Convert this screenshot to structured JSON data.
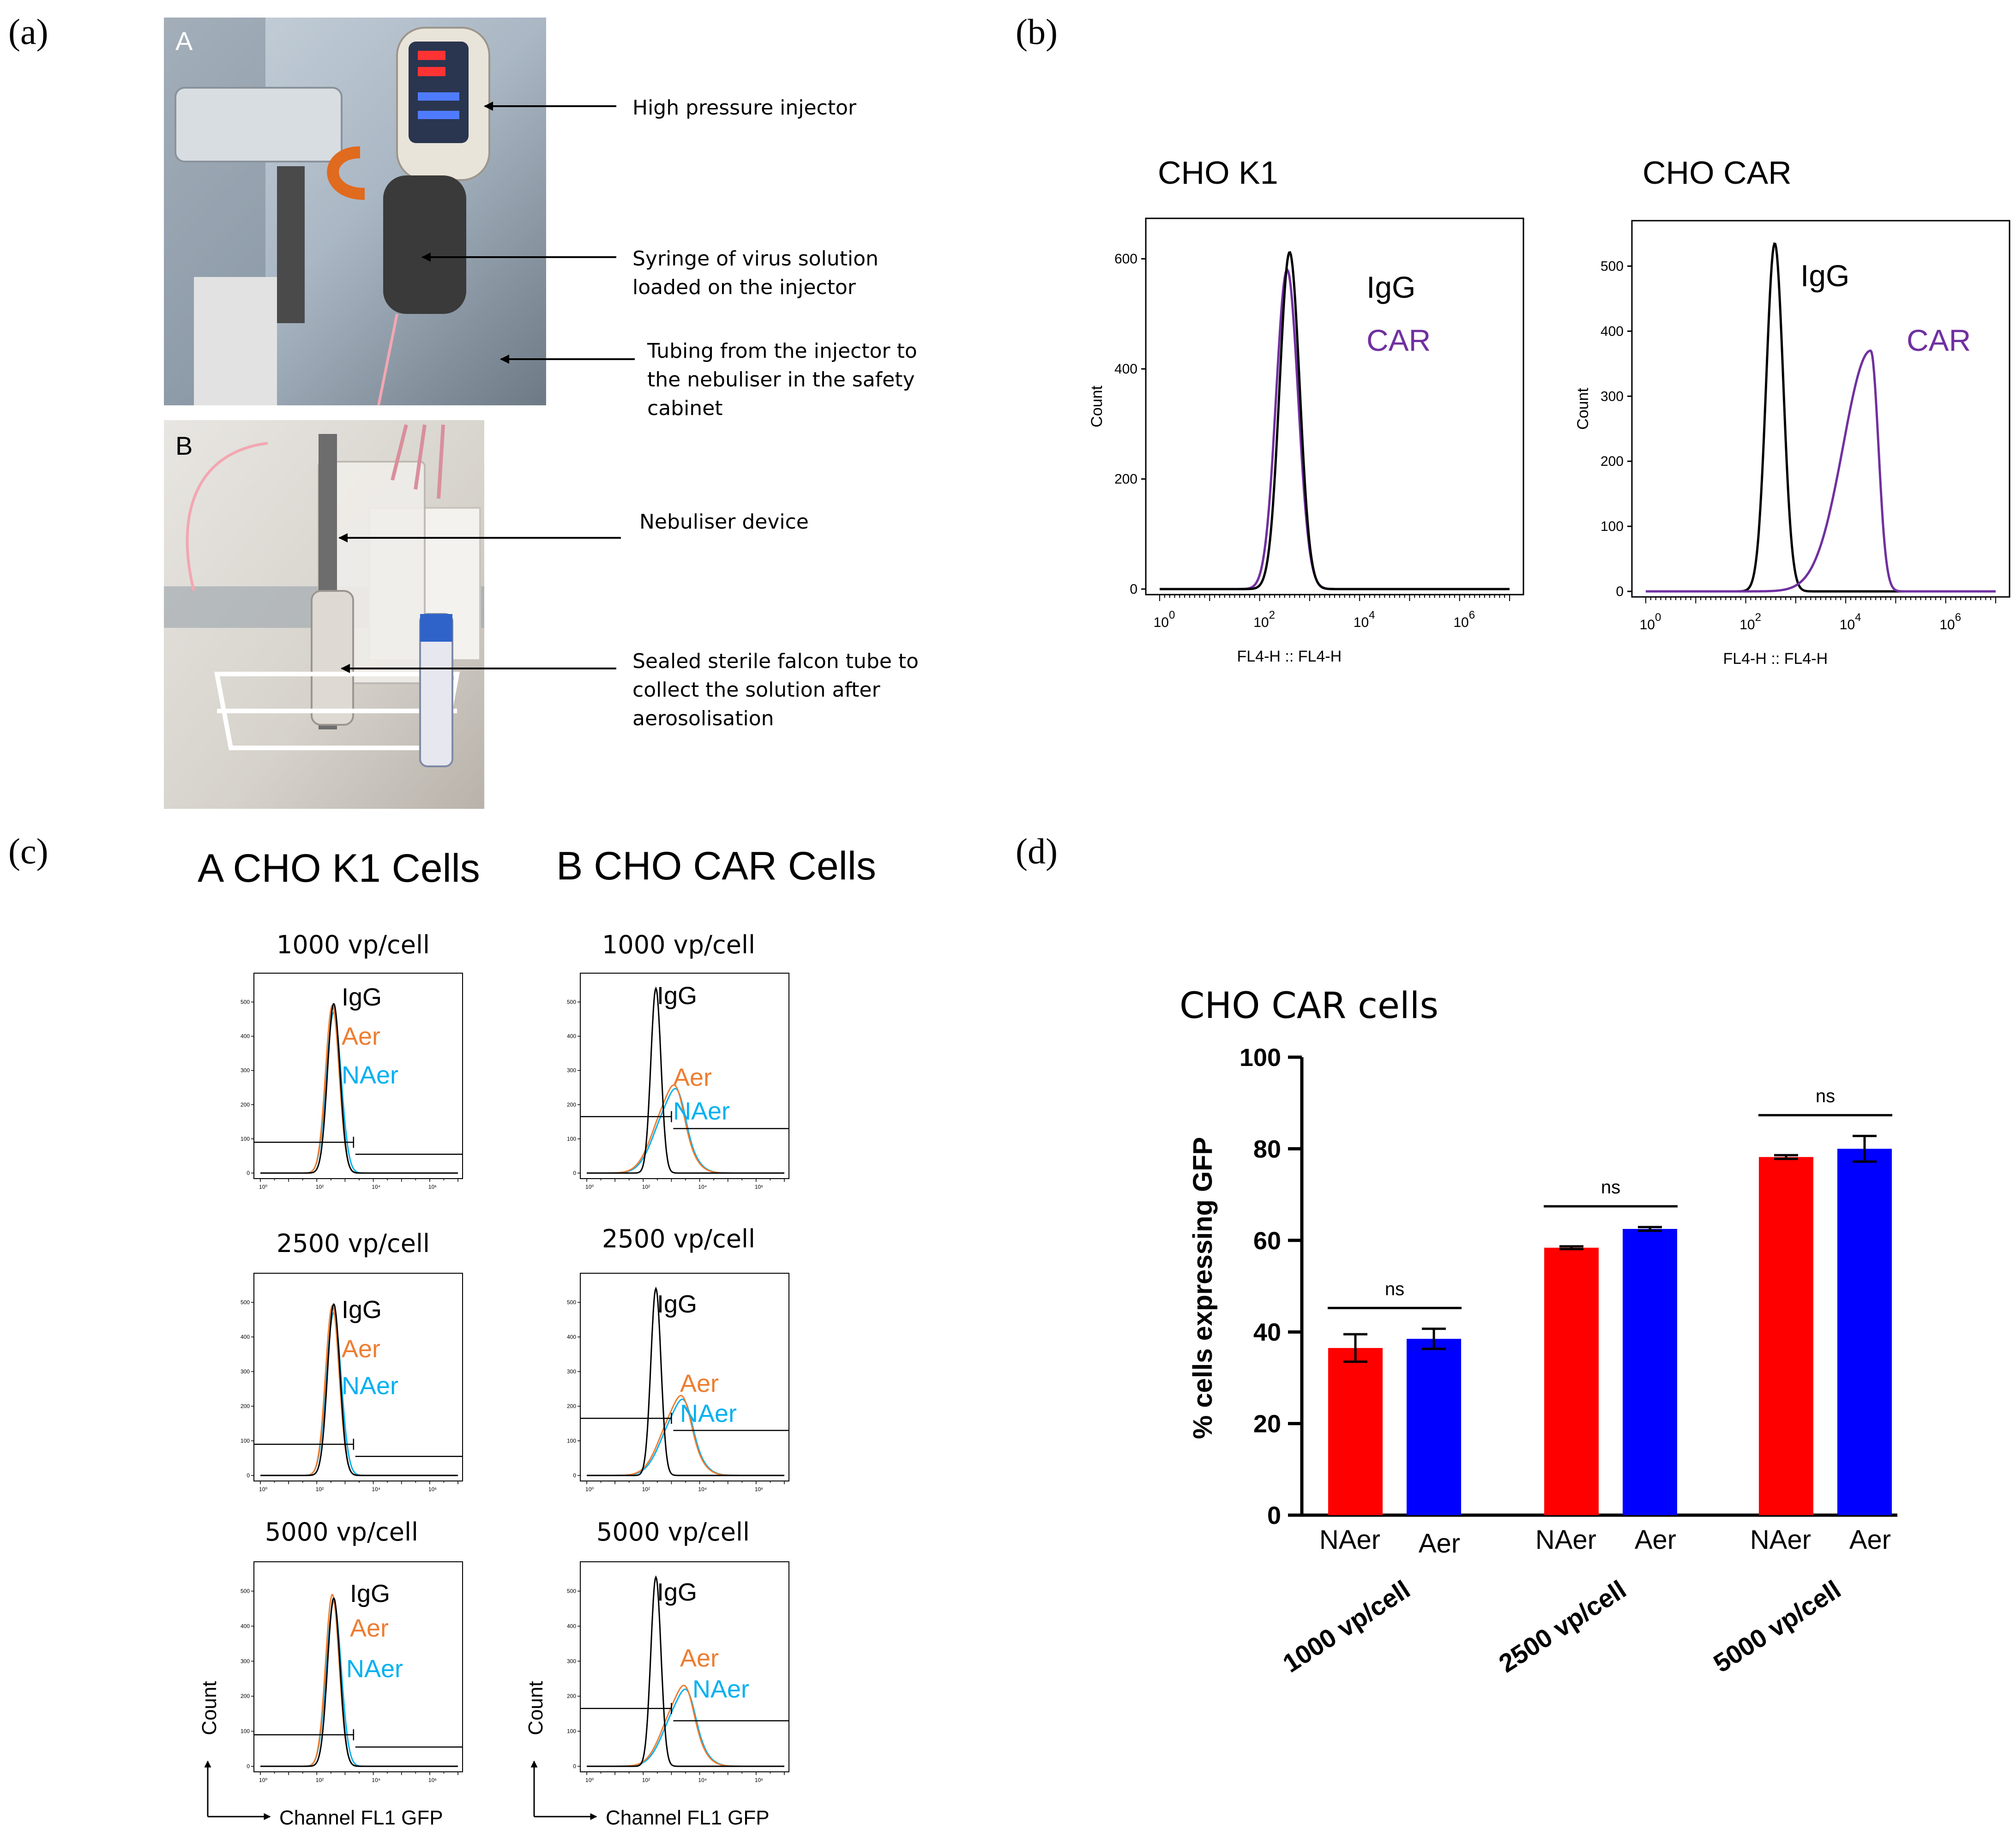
{
  "panel_labels": {
    "a": "(a)",
    "b": "(b)",
    "c": "(c)",
    "d": "(d)"
  },
  "panel_a": {
    "photo_A_letter": "A",
    "photo_B_letter": "B",
    "annotations": [
      {
        "lines": [
          "High pressure injector"
        ]
      },
      {
        "lines": [
          "Syringe of virus solution",
          "loaded on the injector"
        ]
      },
      {
        "lines": [
          "Tubing from the injector to",
          "the nebuliser in the safety",
          "cabinet"
        ]
      },
      {
        "lines": [
          "Nebuliser device"
        ]
      },
      {
        "lines": [
          "Sealed sterile falcon tube to",
          "collect the solution after",
          "aerosolisation"
        ]
      }
    ]
  },
  "panel_b": {
    "charts": [
      {
        "title": "CHO K1",
        "yticks": [
          "0",
          "200",
          "400",
          "600"
        ],
        "ylabel": "Count",
        "xticks": [
          {
            "base": "10",
            "exp": "0"
          },
          {
            "base": "10",
            "exp": "2"
          },
          {
            "base": "10",
            "exp": "4"
          },
          {
            "base": "10",
            "exp": "6"
          }
        ],
        "xlabel": "FL4-H :: FL4-H",
        "legend": [
          "IgG",
          "CAR"
        ]
      },
      {
        "title": "CHO CAR",
        "yticks": [
          "0",
          "100",
          "200",
          "300",
          "400",
          "500"
        ],
        "ylabel": "Count",
        "xticks": [
          {
            "base": "10",
            "exp": "0"
          },
          {
            "base": "10",
            "exp": "2"
          },
          {
            "base": "10",
            "exp": "4"
          },
          {
            "base": "10",
            "exp": "6"
          }
        ],
        "xlabel": "FL4-H :: FL4-H",
        "legend": [
          "IgG",
          "CAR"
        ]
      }
    ],
    "colors": {
      "igg": "#000000",
      "car": "#7030a0"
    }
  },
  "panel_c": {
    "header_k1": "A CHO K1 Cells",
    "header_car": "B CHO CAR Cells",
    "doses": [
      "1000 vp/cell",
      "2500 vp/cell",
      "5000 vp/cell"
    ],
    "legend": {
      "igg": "IgG",
      "aer": "Aer",
      "naer": "NAer"
    },
    "yticks": [
      "0",
      "100",
      "200",
      "300",
      "400",
      "500"
    ],
    "xticks": [
      "10⁰",
      "10²",
      "10⁴",
      "10⁶"
    ],
    "ylabel": "Count",
    "xlabel": "Channel FL1 GFP",
    "colors": {
      "igg": "#000000",
      "aer": "#ed7d31",
      "naer": "#00b0f0"
    }
  },
  "chart_data": {
    "type": "bar",
    "title": "CHO CAR cells",
    "ylabel": "% cells expressing GFP",
    "ylim": [
      0,
      100
    ],
    "yticks": [
      "0",
      "20",
      "40",
      "60",
      "80",
      "100"
    ],
    "categories": [
      "1000 vp/cell",
      "2500 vp/cell",
      "5000 vp/cell"
    ],
    "series": [
      {
        "name": "NAer",
        "color": "#ff0000",
        "values": [
          36.5,
          58.4,
          78.2
        ],
        "errors": [
          3.0,
          0.3,
          0.4
        ]
      },
      {
        "name": "Aer",
        "color": "#0000ff",
        "values": [
          38.5,
          62.5,
          80.0
        ],
        "errors": [
          2.2,
          0.4,
          2.8
        ]
      }
    ],
    "significance": [
      "ns",
      "ns",
      "ns"
    ]
  }
}
